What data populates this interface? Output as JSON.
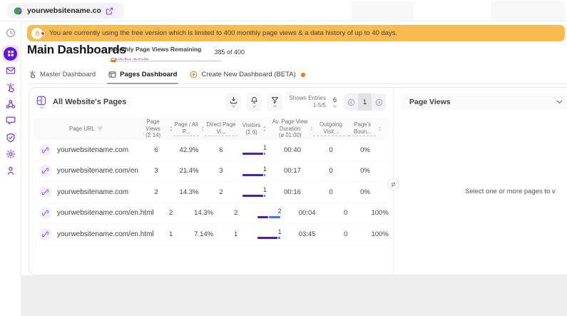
{
  "topbar": {
    "site_label": "yourwebsitename.com"
  },
  "banner": {
    "text": "You are currently using the free version which is limited to 400 monthly page views & a data history of up to 40 days."
  },
  "page": {
    "title": "Main Dashboards"
  },
  "quota": {
    "label": "Monthly Page Views Remaining",
    "link": "Click for details",
    "value": "385 of 400",
    "used_percent": 5
  },
  "tabs": [
    {
      "label": "Master Dashboard",
      "icon": "hand",
      "active": false,
      "badge_dot": false
    },
    {
      "label": "Pages Dashboard",
      "icon": "pages",
      "active": true,
      "badge_dot": false
    },
    {
      "label": "Create New Dashboard (BETA)",
      "icon": "plus",
      "active": false,
      "badge_dot": true
    }
  ],
  "table": {
    "title": "All Website's Pages",
    "shown_entries_label": "Shown Entries",
    "shown_entries_value": "1-5/5",
    "page_size": "6",
    "current_page": "1",
    "columns": [
      {
        "label": "Page URL",
        "sub": "",
        "sortable": false,
        "filter": true,
        "truncated": false
      },
      {
        "label": "Page Views",
        "sub": "(Σ 14)",
        "sortable": true,
        "filter": false,
        "truncated": false
      },
      {
        "label": "Page / All P...",
        "sub": "",
        "sortable": true,
        "filter": false,
        "truncated": true
      },
      {
        "label": "Direct Page Vi...",
        "sub": "",
        "sortable": false,
        "filter": false,
        "truncated": true
      },
      {
        "label": "Visitors",
        "sub": "(Σ 6)",
        "sortable": true,
        "filter": false,
        "truncated": false
      },
      {
        "label": "Av. Page View Duration",
        "sub": "(ø 01:00)",
        "sortable": true,
        "filter": false,
        "truncated": false
      },
      {
        "label": "Outgoing Visit...",
        "sub": "",
        "sortable": false,
        "filter": false,
        "truncated": true
      },
      {
        "label": "Page's Boun...",
        "sub": "",
        "sortable": true,
        "filter": false,
        "truncated": true
      }
    ],
    "rows": [
      {
        "url": "yourwebsitename.com",
        "page_views": "6",
        "page_all": "42.9%",
        "direct": "6",
        "visitors": "1",
        "duration": "00:40",
        "outgoing": "0",
        "bounce": "0%",
        "bar": [
          {
            "color": "purple",
            "pct": 84
          },
          {
            "color": "blue",
            "pct": 7
          }
        ]
      },
      {
        "url": "yourwebsitename.com/en",
        "page_views": "3",
        "page_all": "21.4%",
        "direct": "3",
        "visitors": "1",
        "duration": "00:17",
        "outgoing": "0",
        "bounce": "0%",
        "bar": [
          {
            "color": "purple",
            "pct": 84
          },
          {
            "color": "blue",
            "pct": 7
          }
        ]
      },
      {
        "url": "yourwebsitename.com",
        "page_views": "2",
        "page_all": "14.3%",
        "direct": "2",
        "visitors": "1",
        "duration": "00:16",
        "outgoing": "0",
        "bounce": "0%",
        "bar": [
          {
            "color": "purple",
            "pct": 84
          },
          {
            "color": "blue",
            "pct": 7
          }
        ]
      },
      {
        "url": "yourwebsitename.com/en.html",
        "page_views": "2",
        "page_all": "14.3%",
        "direct": "2",
        "visitors": "2",
        "duration": "00:04",
        "outgoing": "0",
        "bounce": "100%",
        "bar": [
          {
            "color": "purple",
            "pct": 46
          },
          {
            "color": "blue",
            "pct": 46
          }
        ]
      },
      {
        "url": "yourwebsitename.com/en.html",
        "page_views": "1",
        "page_all": "7.14%",
        "direct": "1",
        "visitors": "1",
        "duration": "03:45",
        "outgoing": "0",
        "bounce": "100%",
        "bar": [
          {
            "color": "purple",
            "pct": 84
          },
          {
            "color": "blue",
            "pct": 7
          }
        ]
      }
    ]
  },
  "right_panel": {
    "title": "Page Views",
    "empty_text": "Select one or more pages to v"
  },
  "colors": {
    "accent_purple": "#7C3AED",
    "sidebar_active_purple": "#6316DB",
    "banner_orange": "#F7BB50",
    "progress_orange": "#F97316",
    "bar_purple": "#4A1FB8",
    "bar_blue": "#2E7CF6"
  }
}
